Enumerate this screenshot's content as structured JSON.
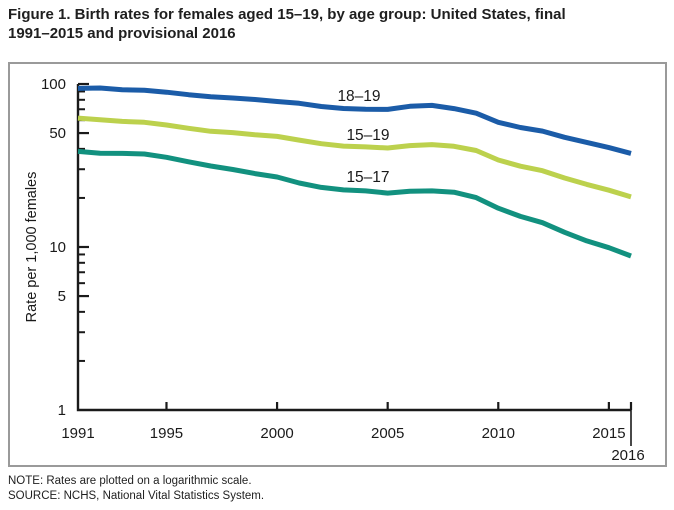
{
  "header": {
    "title_line1": "Figure 1. Birth rates for females aged 15–19, by age group: United States, final",
    "title_line2": "1991–2015 and provisional 2016"
  },
  "footer": {
    "note": "NOTE: Rates are plotted on a logarithmic scale.",
    "source": "SOURCE: NCHS, National Vital Statistics System."
  },
  "chart_data": {
    "type": "line",
    "title": "Figure 1. Birth rates for females aged 15–19, by age group: United States, final 1991–2015 and provisional 2016",
    "xlabel": "",
    "ylabel": "Rate per 1,000 females",
    "y_scale": "log",
    "ylim": [
      1,
      100
    ],
    "xlim": [
      1991,
      2016
    ],
    "grid": false,
    "x": [
      1991,
      1992,
      1993,
      1994,
      1995,
      1996,
      1997,
      1998,
      1999,
      2000,
      2001,
      2002,
      2003,
      2004,
      2005,
      2006,
      2007,
      2008,
      2009,
      2010,
      2011,
      2012,
      2013,
      2014,
      2015,
      2016
    ],
    "x_tick_labels": [
      "1991",
      "1995",
      "2000",
      "2005",
      "2010",
      "2015",
      "2016"
    ],
    "x_tick_years": [
      1995,
      2000,
      2005,
      2010,
      2015,
      2016
    ],
    "y_ticks_labeled": [
      1,
      5,
      10,
      50,
      100
    ],
    "y_ticks_minor": [
      2,
      3,
      4,
      6,
      7,
      8,
      9,
      20,
      30,
      40,
      60,
      70,
      80,
      90
    ],
    "axis_color": "#1a1a1a",
    "series": [
      {
        "name": "18–19",
        "color": "#1b5ca8",
        "values": [
          94.0,
          94.5,
          92.1,
          91.5,
          89.1,
          86.0,
          83.6,
          82.0,
          80.3,
          78.1,
          76.1,
          72.8,
          70.7,
          70.0,
          69.9,
          73.0,
          73.9,
          70.6,
          66.2,
          58.2,
          54.1,
          51.4,
          47.1,
          43.8,
          40.7,
          37.5
        ]
      },
      {
        "name": "15–19",
        "color": "#bcd14d",
        "values": [
          61.8,
          60.3,
          59.0,
          58.2,
          56.0,
          53.5,
          51.3,
          50.3,
          48.8,
          47.7,
          45.3,
          43.0,
          41.6,
          41.1,
          40.5,
          41.9,
          42.5,
          41.5,
          39.1,
          34.2,
          31.3,
          29.4,
          26.5,
          24.2,
          22.3,
          20.3
        ]
      },
      {
        "name": "15–17",
        "color": "#12917f",
        "values": [
          38.6,
          37.6,
          37.5,
          37.2,
          35.5,
          33.3,
          31.4,
          29.9,
          28.2,
          26.9,
          24.7,
          23.2,
          22.4,
          22.1,
          21.4,
          22.0,
          22.1,
          21.7,
          20.1,
          17.3,
          15.4,
          14.1,
          12.3,
          10.9,
          9.9,
          8.8
        ]
      }
    ],
    "legend_position": "inline-labels-above-lines"
  }
}
